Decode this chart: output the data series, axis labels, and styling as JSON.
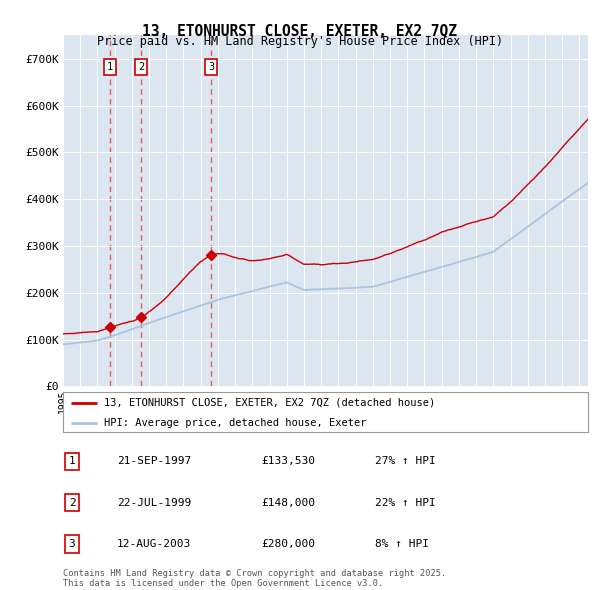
{
  "title": "13, ETONHURST CLOSE, EXETER, EX2 7QZ",
  "subtitle": "Price paid vs. HM Land Registry's House Price Index (HPI)",
  "background_color": "#dce6f1",
  "legend_label_red": "13, ETONHURST CLOSE, EXETER, EX2 7QZ (detached house)",
  "legend_label_blue": "HPI: Average price, detached house, Exeter",
  "footer": "Contains HM Land Registry data © Crown copyright and database right 2025.\nThis data is licensed under the Open Government Licence v3.0.",
  "sales": [
    {
      "num": 1,
      "date": "21-SEP-1997",
      "price": 133530,
      "hpi_pct": "27% ↑ HPI",
      "year": 1997.72
    },
    {
      "num": 2,
      "date": "22-JUL-1999",
      "price": 148000,
      "hpi_pct": "22% ↑ HPI",
      "year": 1999.55
    },
    {
      "num": 3,
      "date": "12-AUG-2003",
      "price": 280000,
      "hpi_pct": "8% ↑ HPI",
      "year": 2003.61
    }
  ],
  "ylim": [
    0,
    750000
  ],
  "yticks": [
    0,
    100000,
    200000,
    300000,
    400000,
    500000,
    600000,
    700000
  ],
  "ytick_labels": [
    "£0",
    "£100K",
    "£200K",
    "£300K",
    "£400K",
    "£500K",
    "£600K",
    "£700K"
  ],
  "xmin": 1995.0,
  "xmax": 2025.5,
  "red_color": "#cc0000",
  "blue_color": "#aac4e0",
  "dashed_color": "#e06060"
}
